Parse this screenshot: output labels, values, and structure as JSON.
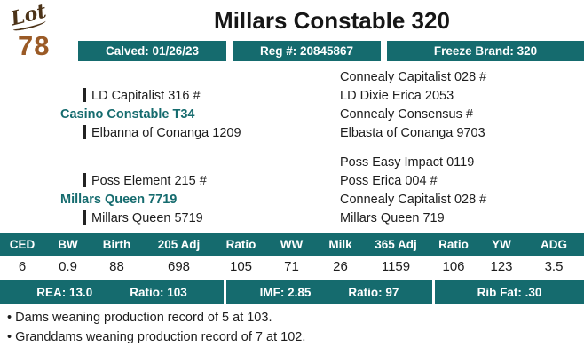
{
  "lot": {
    "label": "Lot",
    "number": "78"
  },
  "title": "Millars Constable 320",
  "badges": [
    "Calved: 01/26/23",
    "Reg #: 20845867",
    "Freeze Brand: 320"
  ],
  "pedigree": {
    "sire_group": {
      "parent": "Casino Constable T34",
      "sire": "LD Capitalist 316 #",
      "dam": "Elbanna of Conanga 1209",
      "ancestors": [
        "Connealy Capitalist 028 #",
        "LD Dixie Erica 2053",
        "Connealy Consensus #",
        "Elbasta of Conanga 9703"
      ]
    },
    "dam_group": {
      "parent": "Millars Queen 7719",
      "sire": "Poss Element 215 #",
      "dam": "Millars Queen 5719",
      "ancestors": [
        "Poss Easy Impact 0119",
        "Poss Erica 004 #",
        "Connealy Capitalist 028 #",
        "Millars Queen 719"
      ]
    }
  },
  "epd_table": {
    "headers": [
      "CED",
      "BW",
      "Birth",
      "205 Adj",
      "Ratio",
      "WW",
      "Milk",
      "365 Adj",
      "Ratio",
      "YW",
      "ADG"
    ],
    "values": [
      "6",
      "0.9",
      "88",
      "698",
      "105",
      "71",
      "26",
      "1159",
      "106",
      "123",
      "3.5"
    ]
  },
  "carcass": {
    "rea": "REA: 13.0",
    "rea_ratio": "Ratio: 103",
    "imf": "IMF: 2.85",
    "imf_ratio": "Ratio: 97",
    "rib_fat": "Rib Fat: .30"
  },
  "notes": [
    "• Dams weaning production record of 5 at 103.",
    "• Granddams weaning production record of 7 at 102."
  ],
  "colors": {
    "teal": "#156b6e",
    "lot_number": "#9a5a26",
    "lot_label": "#4c3318"
  }
}
